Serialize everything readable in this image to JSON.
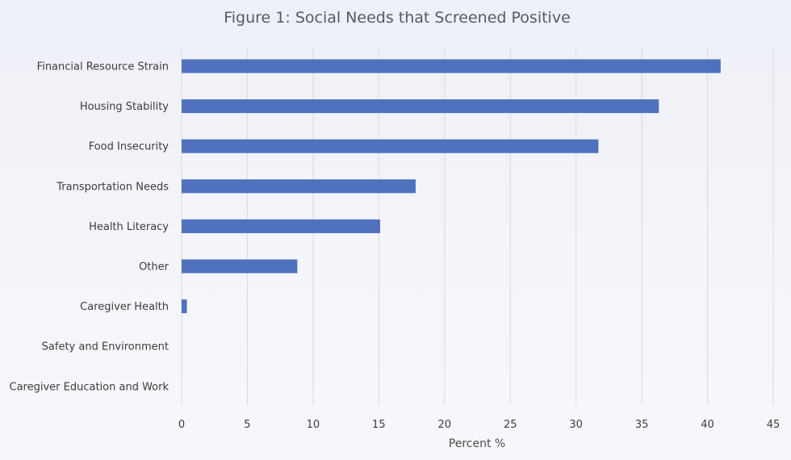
{
  "chart_data": {
    "type": "bar",
    "orientation": "horizontal",
    "title": "Figure 1: Social Needs that Screened Positive",
    "xlabel": "Percent %",
    "ylabel": "",
    "xlim": [
      0,
      45
    ],
    "ticks": [
      0,
      5,
      10,
      15,
      20,
      25,
      30,
      35,
      40,
      45
    ],
    "grid": true,
    "legend": "none",
    "bar_color": "#4f71be",
    "categories": [
      "Financial Resource Strain",
      "Housing Stability",
      "Food Insecurity",
      "Transportation Needs",
      "Health Literacy",
      "Other",
      "Caregiver Health",
      "Safety and Environment",
      "Caregiver Education and Work"
    ],
    "values": [
      41,
      36.3,
      31.7,
      17.8,
      15.1,
      8.8,
      0.4,
      0,
      0
    ]
  }
}
